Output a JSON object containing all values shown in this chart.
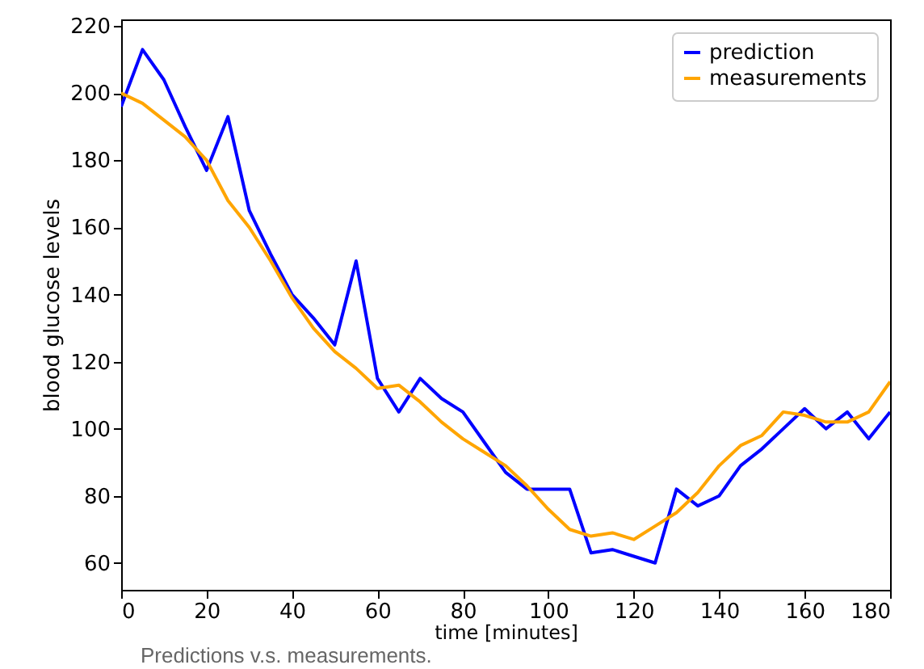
{
  "chart_data": {
    "type": "line",
    "xlabel": "time [minutes]",
    "ylabel": "blood glucose levels",
    "x": [
      0,
      5,
      10,
      15,
      20,
      25,
      30,
      35,
      40,
      45,
      50,
      55,
      60,
      65,
      70,
      75,
      80,
      85,
      90,
      95,
      100,
      105,
      110,
      115,
      120,
      125,
      130,
      135,
      140,
      145,
      150,
      155,
      160,
      165,
      170,
      175,
      180
    ],
    "series": [
      {
        "name": "prediction",
        "color": "#0000ff",
        "values": [
          196,
          213,
          204,
          190,
          177,
          193,
          165,
          152,
          140,
          133,
          125,
          150,
          115,
          105,
          115,
          109,
          105,
          96,
          87,
          82,
          82,
          82,
          63,
          64,
          62,
          60,
          82,
          77,
          80,
          89,
          94,
          100,
          106,
          100,
          105,
          97,
          105
        ]
      },
      {
        "name": "measurements",
        "color": "#ffa500",
        "values": [
          200,
          197,
          192,
          187,
          180,
          168,
          160,
          150,
          139,
          130,
          123,
          118,
          112,
          113,
          108,
          102,
          97,
          93,
          89,
          83,
          76,
          70,
          68,
          69,
          67,
          71,
          75,
          81,
          89,
          95,
          98,
          105,
          104,
          102,
          102,
          105,
          114
        ]
      }
    ],
    "xlim": [
      0,
      180
    ],
    "xticks": [
      0,
      20,
      40,
      60,
      80,
      100,
      120,
      140,
      160,
      180
    ],
    "ylim": [
      52,
      222
    ],
    "yticks": [
      60,
      80,
      100,
      120,
      140,
      160,
      180,
      200,
      220
    ],
    "grid": false,
    "legend": "top right",
    "marker": "none",
    "line_style": "solid",
    "annotations": [
      "Predictions v.s. measurements."
    ]
  }
}
